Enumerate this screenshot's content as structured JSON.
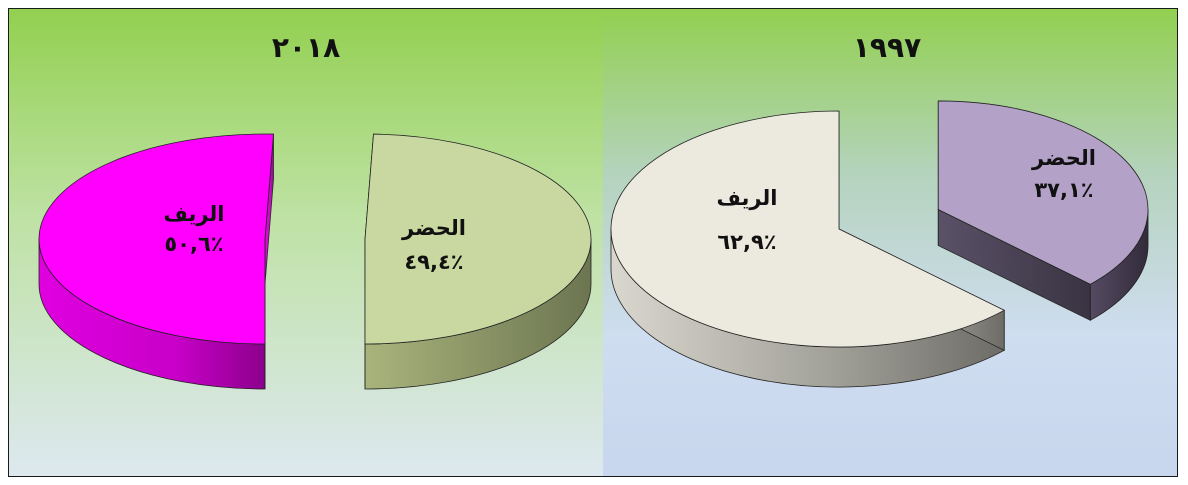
{
  "chart_data": [
    {
      "type": "pie",
      "title": "٢٠١٨",
      "slices": [
        {
          "name": "الريف",
          "value": 50.6,
          "value_label": "٥٠,٦٪",
          "color": "#ff00ff",
          "side_color": "#b800b8"
        },
        {
          "name": "الحضر",
          "value": 49.4,
          "value_label": "٤٩,٤٪",
          "color": "#c8d8a0",
          "side_color": "#848e5e"
        }
      ]
    },
    {
      "type": "pie",
      "title": "١٩٩٧",
      "slices": [
        {
          "name": "الريف",
          "value": 62.9,
          "value_label": "٦٢,٩٪",
          "color": "#ece9df",
          "side_color": "#8f8e86"
        },
        {
          "name": "الحضر",
          "value": 37.1,
          "value_label": "٣٧,١٪",
          "color": "#b3a1c8",
          "side_color": "#463d52"
        }
      ]
    }
  ]
}
